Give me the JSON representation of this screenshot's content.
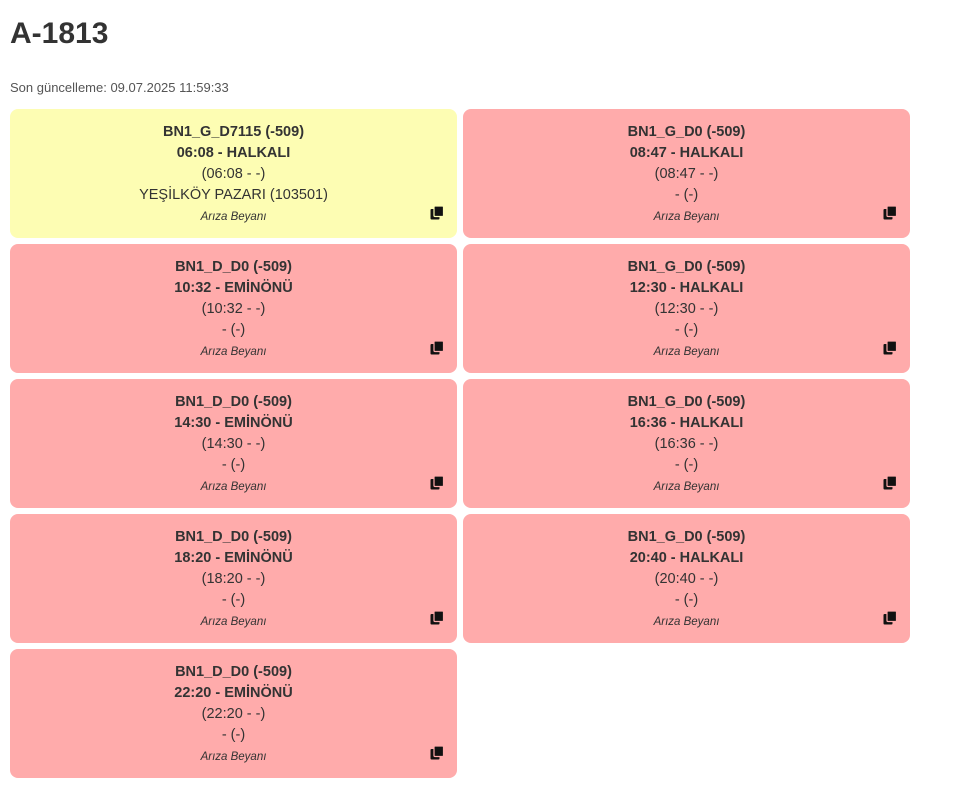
{
  "header": {
    "title": "A-1813",
    "last_updated": "Son güncelleme: 09.07.2025 11:59:33"
  },
  "colors": {
    "fault_card": "#ffabab",
    "active_card": "#fdfdb3"
  },
  "cards": [
    {
      "code": "BN1_G_D7115 (-509)",
      "time_dest": "06:08 - HALKALI",
      "planned": "(06:08 - -)",
      "stop": "YEŞİLKÖY PAZARI (103501)",
      "report": "Arıza Beyanı",
      "status": "active"
    },
    {
      "code": "BN1_G_D0 (-509)",
      "time_dest": "08:47 - HALKALI",
      "planned": "(08:47 - -)",
      "stop": "- (-)",
      "report": "Arıza Beyanı",
      "status": "fault"
    },
    {
      "code": "BN1_D_D0 (-509)",
      "time_dest": "10:32 - EMİNÖNÜ",
      "planned": "(10:32 - -)",
      "stop": "- (-)",
      "report": "Arıza Beyanı",
      "status": "fault"
    },
    {
      "code": "BN1_G_D0 (-509)",
      "time_dest": "12:30 - HALKALI",
      "planned": "(12:30 - -)",
      "stop": "- (-)",
      "report": "Arıza Beyanı",
      "status": "fault"
    },
    {
      "code": "BN1_D_D0 (-509)",
      "time_dest": "14:30 - EMİNÖNÜ",
      "planned": "(14:30 - -)",
      "stop": "- (-)",
      "report": "Arıza Beyanı",
      "status": "fault"
    },
    {
      "code": "BN1_G_D0 (-509)",
      "time_dest": "16:36 - HALKALI",
      "planned": "(16:36 - -)",
      "stop": "- (-)",
      "report": "Arıza Beyanı",
      "status": "fault"
    },
    {
      "code": "BN1_D_D0 (-509)",
      "time_dest": "18:20 - EMİNÖNÜ",
      "planned": "(18:20 - -)",
      "stop": "- (-)",
      "report": "Arıza Beyanı",
      "status": "fault"
    },
    {
      "code": "BN1_G_D0 (-509)",
      "time_dest": "20:40 - HALKALI",
      "planned": "(20:40 - -)",
      "stop": "- (-)",
      "report": "Arıza Beyanı",
      "status": "fault"
    },
    {
      "code": "BN1_D_D0 (-509)",
      "time_dest": "22:20 - EMİNÖNÜ",
      "planned": "(22:20 - -)",
      "stop": "- (-)",
      "report": "Arıza Beyanı",
      "status": "fault"
    }
  ],
  "icons": {
    "copy": "copy-icon"
  }
}
